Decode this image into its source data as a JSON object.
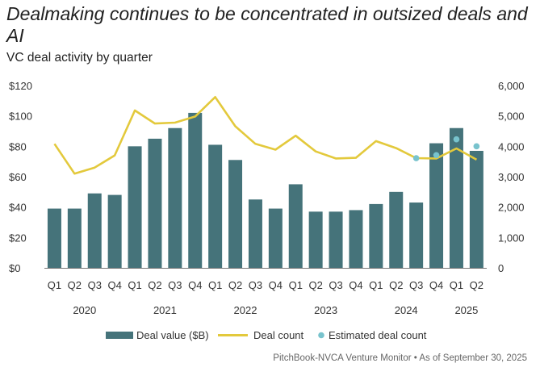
{
  "title": "Dealmaking continues to be concentrated in outsized deals and AI",
  "subtitle": "VC deal activity by quarter",
  "source": "PitchBook-NVCA Venture Monitor  •  As of September 30, 2025",
  "chart_data": {
    "type": "bar",
    "categories": [
      "Q1",
      "Q2",
      "Q3",
      "Q4",
      "Q1",
      "Q2",
      "Q3",
      "Q4",
      "Q1",
      "Q2",
      "Q3",
      "Q4",
      "Q1",
      "Q2",
      "Q3",
      "Q4",
      "Q1",
      "Q2",
      "Q3",
      "Q4",
      "Q1",
      "Q2"
    ],
    "years": [
      {
        "label": "2020",
        "start": 0,
        "end": 3
      },
      {
        "label": "2021",
        "start": 4,
        "end": 7
      },
      {
        "label": "2022",
        "start": 8,
        "end": 11
      },
      {
        "label": "2023",
        "start": 12,
        "end": 15
      },
      {
        "label": "2024",
        "start": 16,
        "end": 19
      },
      {
        "label": "2025",
        "start": 20,
        "end": 21
      }
    ],
    "series": [
      {
        "name": "Deal value ($B)",
        "type": "bar",
        "axis": "left",
        "color": "#45737a",
        "values": [
          39,
          39,
          49,
          48,
          80,
          85,
          92,
          102,
          81,
          71,
          45,
          39,
          55,
          37,
          37,
          38,
          42,
          50,
          43,
          82,
          92,
          77
        ]
      },
      {
        "name": "Deal count",
        "type": "line",
        "axis": "right",
        "color": "#e3c93c",
        "values": [
          4080,
          3100,
          3300,
          3700,
          5180,
          4750,
          4780,
          4980,
          5620,
          4660,
          4080,
          3890,
          4350,
          3830,
          3600,
          3620,
          4170,
          3940,
          3610,
          3600,
          3930,
          3560
        ]
      },
      {
        "name": "Estimated deal count",
        "type": "scatter",
        "axis": "right",
        "color": "#78c3cd",
        "points": [
          [
            18,
            3610
          ],
          [
            19,
            3710
          ],
          [
            20,
            4230
          ],
          [
            21,
            4000
          ]
        ]
      }
    ],
    "y_left": {
      "min": 0,
      "max": 120,
      "ticks": [
        "$0",
        "$20",
        "$40",
        "$60",
        "$80",
        "$100",
        "$120"
      ]
    },
    "y_right": {
      "min": 0,
      "max": 6000,
      "ticks": [
        "0",
        "1,000",
        "2,000",
        "3,000",
        "4,000",
        "5,000",
        "6,000"
      ]
    },
    "legend_position": "bottom",
    "grid": false
  }
}
